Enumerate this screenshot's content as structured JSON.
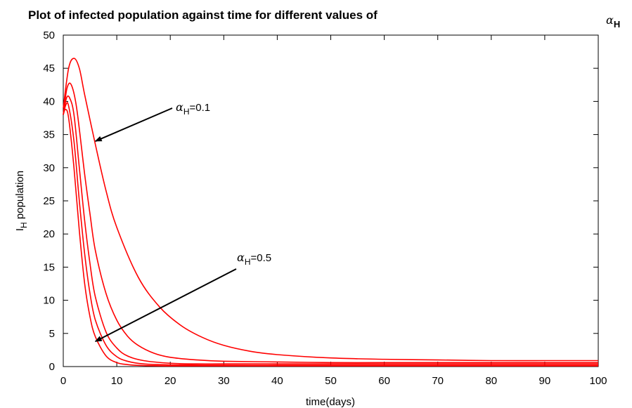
{
  "chart_data": {
    "type": "line",
    "title": "Plot of infected population against time for different values of",
    "title_symbol": {
      "greek": "α",
      "subscript": "H"
    },
    "xlabel": "time(days)",
    "ylabel": {
      "main": "I",
      "subscript": "H",
      "rest": " population"
    },
    "xlim": [
      0,
      100
    ],
    "ylim": [
      0,
      50
    ],
    "x_ticks": [
      "0",
      "10",
      "20",
      "30",
      "40",
      "50",
      "60",
      "70",
      "80",
      "90",
      "100"
    ],
    "y_ticks": [
      "0",
      "5",
      "10",
      "15",
      "20",
      "25",
      "30",
      "35",
      "40",
      "45",
      "50"
    ],
    "grid": false,
    "line_color": "#ff0000",
    "series": [
      {
        "x": [
          0,
          1,
          2,
          3,
          4,
          6,
          8,
          10,
          14,
          18,
          22,
          26,
          30,
          35,
          40,
          50,
          60,
          70,
          80,
          90,
          100
        ],
        "y": [
          39,
          45,
          46.5,
          45,
          41,
          33.5,
          26.5,
          21,
          13.5,
          9,
          6.2,
          4.4,
          3.2,
          2.3,
          1.8,
          1.3,
          1.1,
          1.0,
          0.9,
          0.9,
          0.9
        ]
      },
      {
        "x": [
          0,
          0.7,
          1.5,
          2.5,
          4,
          5,
          6,
          8,
          10,
          12,
          14,
          17,
          20,
          25,
          30,
          40,
          50,
          60,
          70,
          80,
          90,
          100
        ],
        "y": [
          38,
          42,
          42.5,
          39,
          29,
          23,
          17.5,
          11,
          7,
          4.6,
          3.2,
          2,
          1.4,
          1.0,
          0.8,
          0.7,
          0.6,
          0.6,
          0.6,
          0.6,
          0.6,
          0.6
        ]
      },
      {
        "x": [
          0,
          0.6,
          1.2,
          2,
          3,
          4,
          5,
          6,
          8,
          10,
          12,
          15,
          20,
          25,
          30,
          40,
          50,
          60,
          70,
          80,
          90,
          100
        ],
        "y": [
          38,
          40.5,
          40.5,
          38,
          30,
          22,
          15.5,
          10.5,
          5.2,
          2.8,
          1.6,
          0.9,
          0.5,
          0.4,
          0.4,
          0.4,
          0.4,
          0.4,
          0.4,
          0.4,
          0.4,
          0.4
        ]
      },
      {
        "x": [
          0,
          0.5,
          1,
          2,
          3,
          4,
          5,
          6,
          8,
          10,
          12,
          15,
          20,
          30,
          40,
          50,
          60,
          70,
          80,
          90,
          100
        ],
        "y": [
          38,
          39.5,
          39.3,
          34,
          25,
          17,
          11,
          7,
          3.2,
          1.5,
          0.8,
          0.4,
          0.25,
          0.2,
          0.2,
          0.2,
          0.2,
          0.2,
          0.2,
          0.2,
          0.2
        ]
      },
      {
        "x": [
          0,
          0.4,
          1,
          2,
          3,
          4,
          5,
          6,
          8,
          10,
          12,
          15,
          20,
          30,
          40,
          50,
          60,
          70,
          80,
          90,
          100
        ],
        "y": [
          38,
          38.8,
          37.5,
          30,
          20.5,
          12.5,
          7.5,
          4.5,
          1.6,
          0.6,
          0.3,
          0.15,
          0.1,
          0.1,
          0.1,
          0.1,
          0.1,
          0.1,
          0.1,
          0.1,
          0.1
        ]
      }
    ],
    "annotations": [
      {
        "greek": "α",
        "subscript": "H",
        "text": "=0.1",
        "arrow_to": {
          "x": 6,
          "y": 34
        }
      },
      {
        "greek": "α",
        "subscript": "H",
        "text": "=0.5",
        "arrow_to": {
          "x": 6,
          "y": 3.8
        }
      }
    ]
  }
}
